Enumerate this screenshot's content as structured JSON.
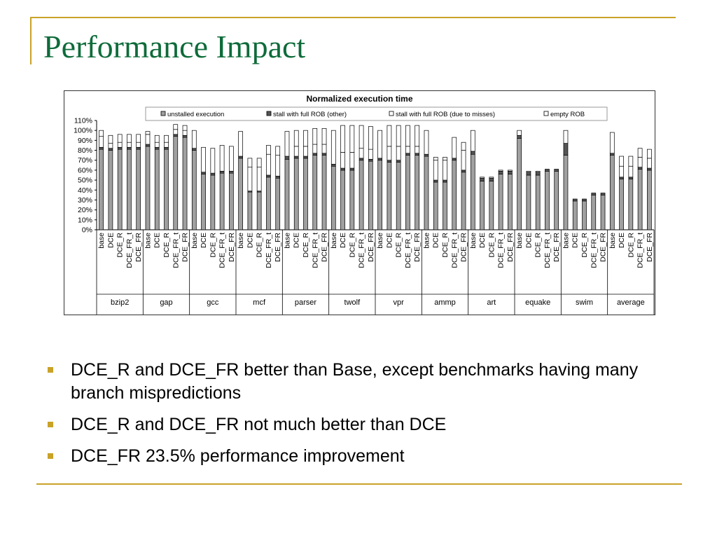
{
  "slide": {
    "title": "Performance Impact",
    "bullets": [
      "DCE_R and DCE_FR better than Base, except benchmarks having many branch mispredictions",
      "DCE_R and DCE_FR not much better than DCE",
      "DCE_FR 23.5% performance improvement"
    ]
  },
  "colors": {
    "accent": "#c9a227",
    "title": "#0e6b3a"
  },
  "chart_data": {
    "type": "bar",
    "stacked": true,
    "title": "Normalized execution time",
    "xlabel": "",
    "ylabel": "",
    "ylim": [
      0,
      110
    ],
    "yticks": [
      "0%",
      "10%",
      "20%",
      "30%",
      "40%",
      "50%",
      "60%",
      "70%",
      "80%",
      "90%",
      "100%",
      "110%"
    ],
    "grid": false,
    "legend_position": "top",
    "configs": [
      "base",
      "DCE",
      "DCE_R",
      "DCE_FR_t",
      "DCE_FR"
    ],
    "groups": [
      "bzip2",
      "gap",
      "gcc",
      "mcf",
      "parser",
      "twolf",
      "vpr",
      "ammp",
      "art",
      "equake",
      "swim",
      "average"
    ],
    "series": [
      {
        "name": "unstalled execution",
        "color": "#a0a0a0",
        "values": [
          [
            81,
            80,
            81,
            81,
            81
          ],
          [
            84,
            81,
            81,
            94,
            93
          ],
          [
            80,
            56,
            55,
            57,
            57
          ],
          [
            72,
            38,
            38,
            53,
            52
          ],
          [
            71,
            72,
            72,
            75,
            75
          ],
          [
            64,
            60,
            60,
            70,
            69
          ],
          [
            70,
            68,
            68,
            75,
            75
          ],
          [
            74,
            48,
            48,
            70,
            58
          ],
          [
            76,
            49,
            49,
            56,
            56
          ],
          [
            92,
            55,
            55,
            59,
            59
          ],
          [
            75,
            29,
            29,
            35,
            35
          ],
          [
            75,
            51,
            51,
            61,
            60
          ]
        ]
      },
      {
        "name": "stall with full ROB (other)",
        "color": "#555555",
        "values": [
          [
            2,
            2,
            2,
            2,
            2
          ],
          [
            2,
            2,
            2,
            2,
            2
          ],
          [
            2,
            2,
            2,
            2,
            2
          ],
          [
            2,
            1,
            1,
            2,
            2
          ],
          [
            3,
            2,
            2,
            2,
            2
          ],
          [
            2,
            2,
            2,
            2,
            2
          ],
          [
            2,
            2,
            2,
            2,
            2
          ],
          [
            2,
            2,
            2,
            2,
            2
          ],
          [
            3,
            3,
            3,
            3,
            3
          ],
          [
            3,
            3,
            3,
            2,
            2
          ],
          [
            12,
            2,
            2,
            2,
            2
          ],
          [
            2,
            2,
            2,
            2,
            2
          ]
        ]
      },
      {
        "name": "stall with full ROB (due to misses)",
        "color": "#ffffff",
        "values": [
          [
            11,
            5,
            5,
            5,
            5
          ],
          [
            10,
            5,
            5,
            5,
            5
          ],
          [
            0,
            0,
            0,
            0,
            0
          ],
          [
            0,
            24,
            24,
            21,
            21
          ],
          [
            0,
            10,
            10,
            9,
            9
          ],
          [
            0,
            16,
            16,
            10,
            10
          ],
          [
            0,
            14,
            14,
            7,
            7
          ],
          [
            0,
            20,
            20,
            21,
            20
          ],
          [
            0,
            0,
            0,
            0,
            0
          ],
          [
            0,
            0,
            0,
            0,
            0
          ],
          [
            0,
            0,
            0,
            0,
            0
          ],
          [
            0,
            11,
            11,
            10,
            10
          ]
        ]
      },
      {
        "name": "empty ROB",
        "color": "#ffffff",
        "values": [
          [
            6,
            8,
            8,
            8,
            8
          ],
          [
            3,
            7,
            7,
            5,
            5
          ],
          [
            18,
            25,
            25,
            26,
            25
          ],
          [
            25,
            9,
            9,
            9,
            9
          ],
          [
            25,
            16,
            16,
            16,
            16
          ],
          [
            34,
            27,
            27,
            23,
            23
          ],
          [
            28,
            21,
            21,
            21,
            21
          ],
          [
            24,
            3,
            3,
            0,
            8
          ],
          [
            21,
            1,
            1,
            1,
            1
          ],
          [
            5,
            1,
            1,
            0,
            0
          ],
          [
            13,
            0,
            0,
            0,
            0
          ],
          [
            21,
            10,
            10,
            9,
            9
          ]
        ]
      }
    ]
  }
}
